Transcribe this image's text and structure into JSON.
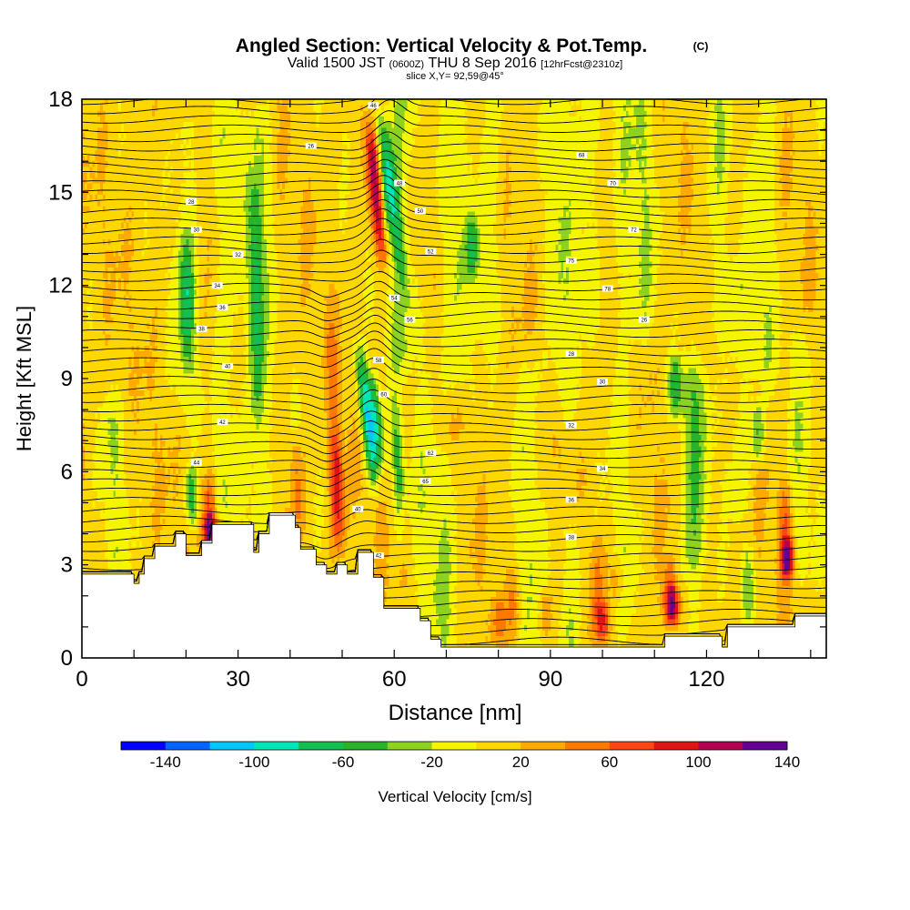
{
  "chart_data": {
    "type": "heatmap",
    "title": "Angled Section: Vertical Velocity & Pot.Temp.",
    "title_unit": "(C)",
    "subtitle": {
      "valid": "Valid 1500 JST",
      "utc": "(0600Z)",
      "date": "THU 8 Sep 2016",
      "fcst": "[12hrFcst@2310z]"
    },
    "slice_label": "slice X,Y= 92,59@45°",
    "xlabel": "Distance [nm]",
    "ylabel": "Height [Kft MSL]",
    "xlim": [
      0,
      143
    ],
    "ylim": [
      0,
      18
    ],
    "x_ticks": [
      0,
      30,
      60,
      90,
      120
    ],
    "y_ticks": [
      0,
      3,
      6,
      9,
      12,
      15,
      18
    ],
    "colorbar": {
      "label": "Vertical Velocity [cm/s]",
      "tick_labels": [
        "-140",
        "-100",
        "-60",
        "-20",
        "20",
        "60",
        "100",
        "140"
      ],
      "levels": [
        -160,
        -140,
        -120,
        -100,
        -80,
        -60,
        -40,
        -20,
        0,
        20,
        40,
        60,
        80,
        100,
        120,
        140,
        160
      ],
      "colors": [
        "#0000ff",
        "#0064ff",
        "#00c8ff",
        "#00e6b4",
        "#14be50",
        "#28b428",
        "#8cd21e",
        "#f5f500",
        "#ffd700",
        "#ffaa00",
        "#ff7800",
        "#ff4614",
        "#e11414",
        "#b40050",
        "#640096"
      ]
    },
    "terrain": [
      [
        0,
        2.7
      ],
      [
        10,
        2.7
      ],
      [
        10,
        2.4
      ],
      [
        11,
        2.4
      ],
      [
        11,
        2.7
      ],
      [
        12,
        2.7
      ],
      [
        12,
        3.2
      ],
      [
        14,
        3.2
      ],
      [
        14,
        3.6
      ],
      [
        18,
        3.6
      ],
      [
        18,
        4.0
      ],
      [
        20,
        4.0
      ],
      [
        20,
        3.3
      ],
      [
        23,
        3.3
      ],
      [
        23,
        3.7
      ],
      [
        25,
        3.7
      ],
      [
        25,
        4.3
      ],
      [
        33,
        4.3
      ],
      [
        33,
        3.4
      ],
      [
        34,
        3.4
      ],
      [
        34,
        4.0
      ],
      [
        36,
        4.0
      ],
      [
        36,
        4.6
      ],
      [
        41,
        4.6
      ],
      [
        41,
        4.2
      ],
      [
        42,
        4.2
      ],
      [
        42,
        3.5
      ],
      [
        45,
        3.5
      ],
      [
        45,
        3.0
      ],
      [
        47,
        3.0
      ],
      [
        47,
        2.7
      ],
      [
        49,
        2.7
      ],
      [
        49,
        3.0
      ],
      [
        51,
        3.0
      ],
      [
        51,
        2.7
      ],
      [
        53,
        2.7
      ],
      [
        53,
        3.4
      ],
      [
        56,
        3.4
      ],
      [
        56,
        2.6
      ],
      [
        58,
        2.6
      ],
      [
        58,
        1.6
      ],
      [
        65,
        1.6
      ],
      [
        65,
        1.2
      ],
      [
        67,
        1.2
      ],
      [
        67,
        0.6
      ],
      [
        69,
        0.6
      ],
      [
        69,
        0.35
      ],
      [
        112,
        0.35
      ],
      [
        112,
        0.7
      ],
      [
        123,
        0.7
      ],
      [
        123,
        0.35
      ],
      [
        124,
        0.35
      ],
      [
        124,
        1.0
      ],
      [
        137,
        1.0
      ],
      [
        137,
        1.35
      ],
      [
        143,
        1.35
      ]
    ],
    "theta_contours": {
      "base_level": 23,
      "interval": 1,
      "count": 60,
      "labels": [
        "26",
        "28",
        "30",
        "32",
        "34",
        "36",
        "38",
        "40",
        "42",
        "44",
        "46",
        "48",
        "50",
        "52",
        "54",
        "56",
        "58",
        "60",
        "62",
        "65",
        "68",
        "70",
        "72",
        "75",
        "78"
      ]
    },
    "velocity_features": [
      {
        "x": 53,
        "y0": 5.0,
        "y1": 10.5,
        "tilt": 0.7,
        "v": -80
      },
      {
        "x": 55.5,
        "y0": 5.8,
        "y1": 9.5,
        "tilt": 0.6,
        "v": -60
      },
      {
        "x": 57,
        "y0": 13,
        "y1": 18,
        "tilt": 0.4,
        "v": -60
      },
      {
        "x": 57.5,
        "y0": 11,
        "y1": 18,
        "tilt": 0.8,
        "v": -40
      },
      {
        "x": 54.5,
        "y0": 12,
        "y1": 18,
        "tilt": 0.6,
        "v": 60
      },
      {
        "x": 55.8,
        "y0": 12.5,
        "y1": 17.5,
        "tilt": 0.55,
        "v": 80
      },
      {
        "x": 47.5,
        "y0": 2.7,
        "y1": 12,
        "tilt": 0.3,
        "v": 40
      },
      {
        "x": 48.5,
        "y0": 3.0,
        "y1": 7.5,
        "tilt": 0.2,
        "v": 60
      },
      {
        "x": 41,
        "y0": 3.5,
        "y1": 7.5,
        "tilt": 0.2,
        "v": 40
      },
      {
        "x": 24.5,
        "y0": 3.3,
        "y1": 6.2,
        "tilt": 0.1,
        "v": 60
      },
      {
        "x": 21,
        "y0": 4.0,
        "y1": 6.5,
        "tilt": 0.1,
        "v": -40
      },
      {
        "x": 20,
        "y0": 9.0,
        "y1": 14.0,
        "tilt": 0.1,
        "v": -40
      },
      {
        "x": 33,
        "y0": 7.0,
        "y1": 16.0,
        "tilt": 0.1,
        "v": -40
      },
      {
        "x": 60,
        "y0": 2.5,
        "y1": 9.0,
        "tilt": 0.3,
        "v": -40
      },
      {
        "x": 61.5,
        "y0": 2.2,
        "y1": 5.5,
        "tilt": 0.1,
        "v": 40
      },
      {
        "x": 75,
        "y0": 12.0,
        "y1": 14.5,
        "tilt": 0.0,
        "v": -40
      },
      {
        "x": 99,
        "y0": 0.4,
        "y1": 4.5,
        "tilt": 0.0,
        "v": 40
      },
      {
        "x": 113,
        "y0": 0.7,
        "y1": 3.5,
        "tilt": 0.0,
        "v": 60
      },
      {
        "x": 113.5,
        "y0": 0.9,
        "y1": 2.5,
        "tilt": 0.0,
        "v": 80
      },
      {
        "x": 130,
        "y0": 6.0,
        "y1": 8.5,
        "tilt": 0.0,
        "v": -40
      },
      {
        "x": 114,
        "y0": 7.5,
        "y1": 10.0,
        "tilt": 0.0,
        "v": -40
      },
      {
        "x": 135,
        "y0": 2.0,
        "y1": 6.0,
        "tilt": 0.1,
        "v": 60
      },
      {
        "x": 135.5,
        "y0": 2.5,
        "y1": 4.0,
        "tilt": 0.1,
        "v": 80
      },
      {
        "x": 103,
        "y0": 1.5,
        "y1": 3.5,
        "tilt": 0.0,
        "v": 40
      },
      {
        "x": 89,
        "y0": 0.4,
        "y1": 2.5,
        "tilt": 0.0,
        "v": 40
      },
      {
        "x": 83,
        "y0": 0.4,
        "y1": 3.0,
        "tilt": 0.0,
        "v": 40
      },
      {
        "x": 80,
        "y0": 0.4,
        "y1": 2.2,
        "tilt": 0.0,
        "v": 40
      },
      {
        "x": 100,
        "y0": 0.4,
        "y1": 2.0,
        "tilt": 0.0,
        "v": 60
      },
      {
        "x": 128,
        "y0": 0.8,
        "y1": 4.0,
        "tilt": 0.0,
        "v": -30
      },
      {
        "x": 24.5,
        "y0": 3.3,
        "y1": 4.8,
        "tilt": 0.0,
        "v": 80
      }
    ],
    "green_bands": [
      [
        3,
        18,
        8.5,
        -25
      ],
      [
        16,
        16,
        7.5,
        -25
      ],
      [
        20,
        8.5,
        17,
        -25
      ],
      [
        28,
        5,
        17,
        -25
      ],
      [
        34,
        4.5,
        17,
        -30
      ],
      [
        61,
        10,
        18,
        -35
      ],
      [
        72,
        9,
        18,
        -25
      ],
      [
        78,
        11,
        18,
        -25
      ],
      [
        92,
        8.5,
        18,
        -25
      ],
      [
        97,
        11.5,
        18,
        -25
      ],
      [
        104,
        1.5,
        18,
        -20
      ],
      [
        108,
        11,
        18,
        -25
      ],
      [
        118,
        3.5,
        9,
        -25
      ],
      [
        122,
        11,
        18,
        -25
      ],
      [
        126,
        5.5,
        12,
        -25
      ],
      [
        131,
        9.5,
        18,
        -25
      ],
      [
        138,
        3,
        10,
        -20
      ],
      [
        86,
        0.4,
        9,
        -25
      ],
      [
        70,
        0.5,
        6,
        -25
      ],
      [
        117,
        0.7,
        8.5,
        -25
      ],
      [
        94,
        0.4,
        4,
        -25
      ],
      [
        6,
        3.0,
        7.5,
        -25
      ],
      [
        66,
        2.0,
        11,
        -20
      ]
    ]
  }
}
